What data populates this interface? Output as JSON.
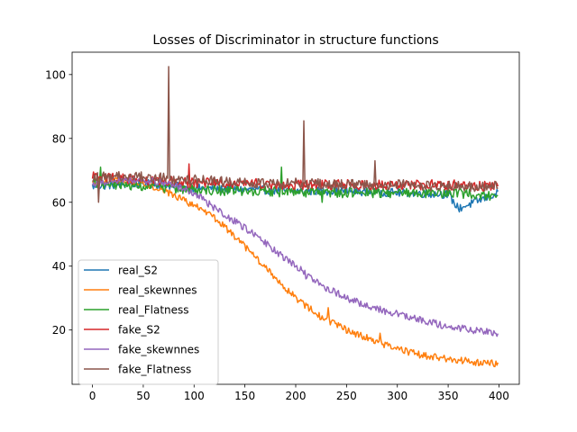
{
  "chart_data": {
    "type": "line",
    "title": "Losses of Discriminator in structure functions",
    "xlabel": "",
    "ylabel": "",
    "xlim": [
      -20,
      420
    ],
    "ylim": [
      3,
      107
    ],
    "xticks": [
      0,
      50,
      100,
      150,
      200,
      250,
      300,
      350,
      400
    ],
    "yticks": [
      20,
      40,
      60,
      80,
      100
    ],
    "grid": false,
    "legend_position": "lower-left",
    "n_points": 400,
    "series": [
      {
        "name": "real_S2",
        "color": "#1f77b4",
        "x": [
          0,
          50,
          100,
          150,
          200,
          250,
          300,
          350,
          360,
          400
        ],
        "y": [
          65,
          66,
          64.5,
          64,
          63.5,
          63.5,
          63,
          62.5,
          58,
          63
        ],
        "jitter": 1.3
      },
      {
        "name": "real_skewnnes",
        "color": "#ff7f0e",
        "x": [
          0,
          25,
          50,
          75,
          100,
          125,
          150,
          175,
          200,
          225,
          250,
          275,
          300,
          325,
          350,
          375,
          400
        ],
        "y": [
          66,
          67,
          66,
          63,
          59,
          54,
          46,
          38,
          30,
          24,
          20,
          17,
          14,
          12,
          11,
          10,
          9.5
        ],
        "jitter": 1.1,
        "spikes": [
          [
            283,
            19
          ],
          [
            232,
            27
          ]
        ]
      },
      {
        "name": "real_Flatness",
        "color": "#2ca02c",
        "x": [
          0,
          50,
          100,
          150,
          200,
          250,
          300,
          350,
          400
        ],
        "y": [
          66,
          65,
          64,
          63.5,
          63,
          63,
          63,
          63,
          62
        ],
        "jitter": 1.6,
        "spikes": [
          [
            8,
            71
          ],
          [
            186,
            71
          ],
          [
            226,
            60
          ]
        ]
      },
      {
        "name": "fake_S2",
        "color": "#d62728",
        "x": [
          0,
          50,
          100,
          150,
          200,
          250,
          300,
          350,
          400
        ],
        "y": [
          68,
          67,
          66,
          66,
          65.5,
          65.5,
          65.5,
          65.5,
          65
        ],
        "jitter": 1.6,
        "spikes": [
          [
            95,
            72
          ]
        ]
      },
      {
        "name": "fake_skewnnes",
        "color": "#9467bd",
        "x": [
          0,
          25,
          50,
          75,
          100,
          125,
          150,
          175,
          200,
          225,
          250,
          275,
          300,
          325,
          350,
          375,
          400
        ],
        "y": [
          66,
          67,
          67,
          66,
          63,
          57,
          52,
          46,
          40,
          34,
          30,
          27,
          25,
          23,
          21,
          20,
          19
        ],
        "jitter": 1.1,
        "spikes": [
          [
            210,
            36
          ],
          [
            180,
            44
          ]
        ]
      },
      {
        "name": "fake_Flatness",
        "color": "#8c564b",
        "x": [
          0,
          50,
          100,
          150,
          200,
          250,
          300,
          350,
          400
        ],
        "y": [
          68,
          68,
          67,
          66,
          66,
          65.5,
          65.5,
          65,
          65
        ],
        "jitter": 1.6,
        "spikes": [
          [
            75,
            102.5
          ],
          [
            208,
            85.5
          ],
          [
            278,
            73
          ],
          [
            6,
            60
          ]
        ]
      }
    ]
  }
}
